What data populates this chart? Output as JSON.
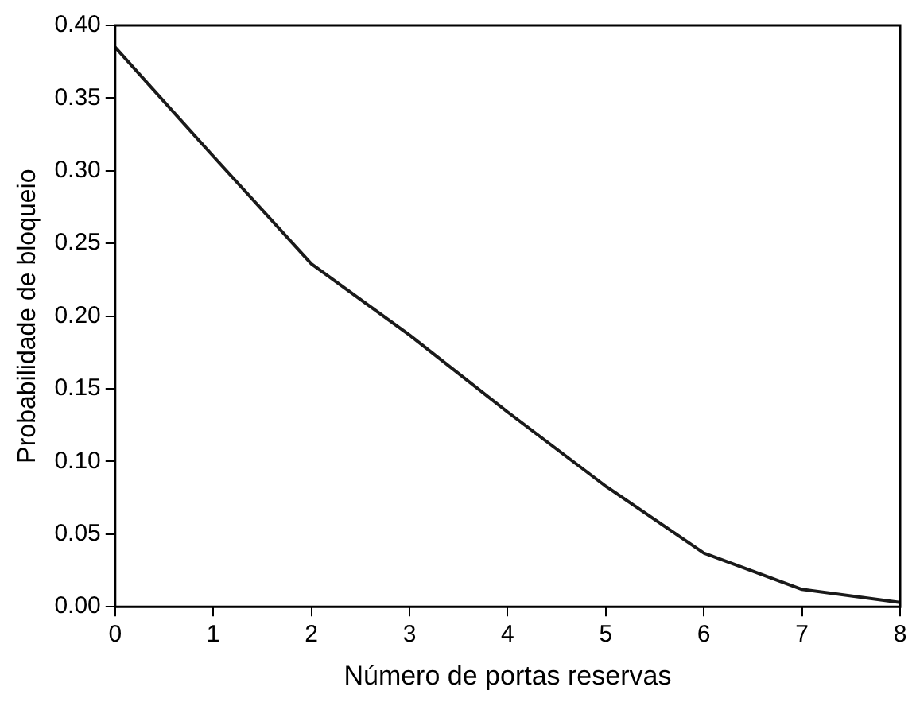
{
  "chart_data": {
    "type": "line",
    "xlabel": "Número de portas reservas",
    "ylabel": "Probabilidade de bloqueio",
    "x": [
      0,
      1,
      2,
      3,
      4,
      5,
      6,
      7,
      8
    ],
    "series": [
      {
        "color": "#1a1a1a",
        "values": [
          0.385,
          0.31,
          0.236,
          0.187,
          0.134,
          0.083,
          0.037,
          0.012,
          0.003
        ]
      }
    ],
    "xlim": [
      0,
      8
    ],
    "xticks": [
      0,
      1,
      2,
      3,
      4,
      5,
      6,
      7,
      8
    ],
    "ylim": [
      0,
      0.4
    ],
    "yticks": [
      {
        "value": 0,
        "label": "0.00"
      },
      {
        "value": 0.05,
        "label": "0.05"
      },
      {
        "value": 0.1,
        "label": "0.10"
      },
      {
        "value": 0.15,
        "label": "0.15"
      },
      {
        "value": 0.2,
        "label": "0.20"
      },
      {
        "value": 0.25,
        "label": "0.25"
      },
      {
        "value": 0.3,
        "label": "0.30"
      },
      {
        "value": 0.35,
        "label": "0.35"
      },
      {
        "value": 0.4,
        "label": "0.40"
      }
    ],
    "grid": false,
    "legend": false,
    "marker": "none",
    "line_style": "solid"
  }
}
